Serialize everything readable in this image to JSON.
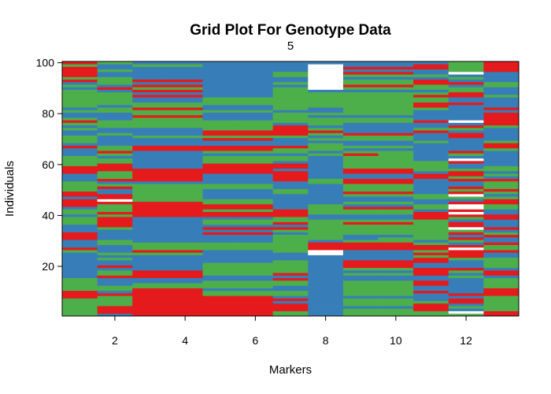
{
  "chart_data": {
    "type": "heatmap",
    "title": "Grid Plot For Genotype Data",
    "subtitle": "5",
    "xlabel": "Markers",
    "ylabel": "Individuals",
    "x_ticks": [
      2,
      4,
      6,
      8,
      10,
      12
    ],
    "y_ticks": [
      20,
      40,
      60,
      80,
      100
    ],
    "xlim": [
      0.5,
      13.5
    ],
    "ylim": [
      0.5,
      100.5
    ],
    "n_markers": 13,
    "n_individuals": 100,
    "colors": {
      "code_0": "#377EB8",
      "code_1": "#4DAF4A",
      "code_2": "#E41A1C",
      "missing": "#FFFFFF"
    },
    "columns": [
      "1111111222111110000000000120002220001110110222022111100022211110002011100101210010111111101021222212",
      "0222111120110002110200101000110000122221211123220021021112221101211000010011100011011111020111001001",
      "2222222222211002220000001211100000000002222221111111022222000000022000100011112112110020212020000010",
      "2222222222211002220000001211100000000002222221111111022222000000022000100011112112110020212020000010",
      "2222222211011100111110000011100020201102212211000011000022221110122002122111100010011100000000000000",
      "2222222211011100111110000011100020201102212211000011000022221110122002122111100010011100000000000000",
      "1122202011001120211111000111111101202112220000001100022220220110112000122220111101111111110100110000",
      "0000000000000000000000003322201111111100111100000000110000000001011101012101110100111111033333333330",
      "1110111011111100101222000022210011112100112010012111220022111112101001120000110111111111012110120200",
      "1110111011111100101222000022211011112100112010012111220022111111101001120000110111111111012110120200",
      "1122210002002200222002212122101111111122201100110000002201111000000010002100200001221121011220100220",
      "1301022020000001012000122232012021322012323320132120021221002301200000220120300000020022110201031111",
      "2211111122211110220111100211200210200022001122101211120101100000012210000012222202000010001100002222"
    ]
  }
}
